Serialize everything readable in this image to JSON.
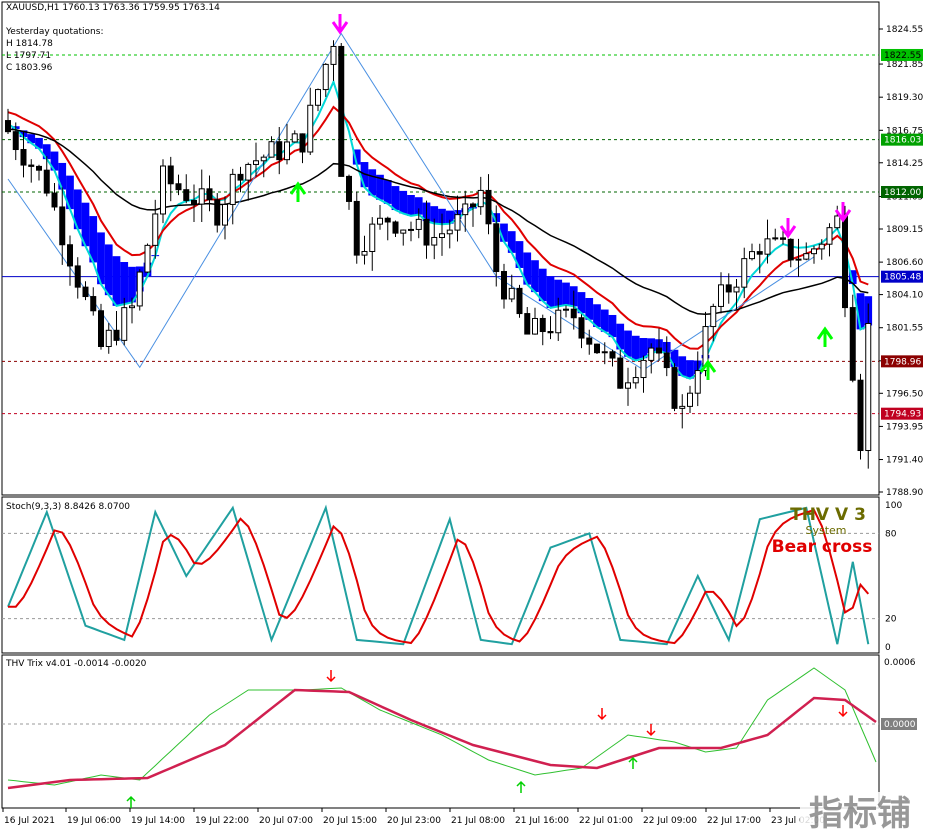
{
  "main": {
    "title": "XAUUSD,H1  1760.13 1763.36 1759.95 1763.14",
    "quotes": {
      "heading": "Yesterday quotations:",
      "high": "H 1814.78",
      "low": "L 1797.71",
      "close": "C 1803.96"
    },
    "price_ticks": [
      "1824.55",
      "1821.85",
      "1819.30",
      "1816.75",
      "1814.25",
      "1811.65",
      "1809.15",
      "1806.60",
      "1804.10",
      "1801.55",
      "1799.00",
      "1796.50",
      "1793.95",
      "1791.40",
      "1788.90"
    ],
    "level_labels": [
      {
        "text": "1822.55",
        "price": 1822.55,
        "bg": "#00c000",
        "fg": "#000000",
        "line": "#00c000"
      },
      {
        "text": "1816.03",
        "price": 1816.03,
        "bg": "#00a000",
        "fg": "#ffffff",
        "line": "#006400"
      },
      {
        "text": "1812.00",
        "price": 1812.0,
        "bg": "#006400",
        "fg": "#ffffff",
        "line": "#006400"
      },
      {
        "text": "1805.48",
        "price": 1805.48,
        "bg": "#0000c8",
        "fg": "#ffffff",
        "line": "#0000c8"
      },
      {
        "text": "1798.96",
        "price": 1798.96,
        "bg": "#8b0000",
        "fg": "#ffffff",
        "line": "#8b0000"
      },
      {
        "text": "1794.93",
        "price": 1794.93,
        "bg": "#c00020",
        "fg": "#ffffff",
        "line": "#c00020"
      }
    ]
  },
  "stoch": {
    "title": "Stoch(9,3,3) 8.8426 8.0700",
    "levels": [
      "100",
      "80",
      "20",
      "0"
    ],
    "watermark": {
      "line1": "THV V 3",
      "line2": "System",
      "line3": "Bear cross"
    }
  },
  "trix": {
    "title": "THV Trix v4.01 -0.0014 -0.0020",
    "levels": [
      "0.0006",
      "0.0000"
    ]
  },
  "x_ticks": [
    "16 Jul 2021",
    "19 Jul 06:00",
    "19 Jul 14:00",
    "19 Jul 22:00",
    "20 Jul 07:00",
    "20 Jul 15:00",
    "20 Jul 23:00",
    "21 Jul 08:00",
    "21 Jul 16:00",
    "22 Jul 01:00",
    "22 Jul 09:00",
    "22 Jul 17:00",
    "23 Jul 02:00"
  ],
  "logo_text": "指标铺",
  "colors": {
    "bull": "#ffffff",
    "bear": "#000000",
    "ema_red": "#e00000",
    "ema_black": "#000000",
    "cloud": "#0000ff",
    "cyan": "#00d8d8",
    "buy_arrow": "#00ff00",
    "sell_arrow": "#ff00ff"
  }
}
